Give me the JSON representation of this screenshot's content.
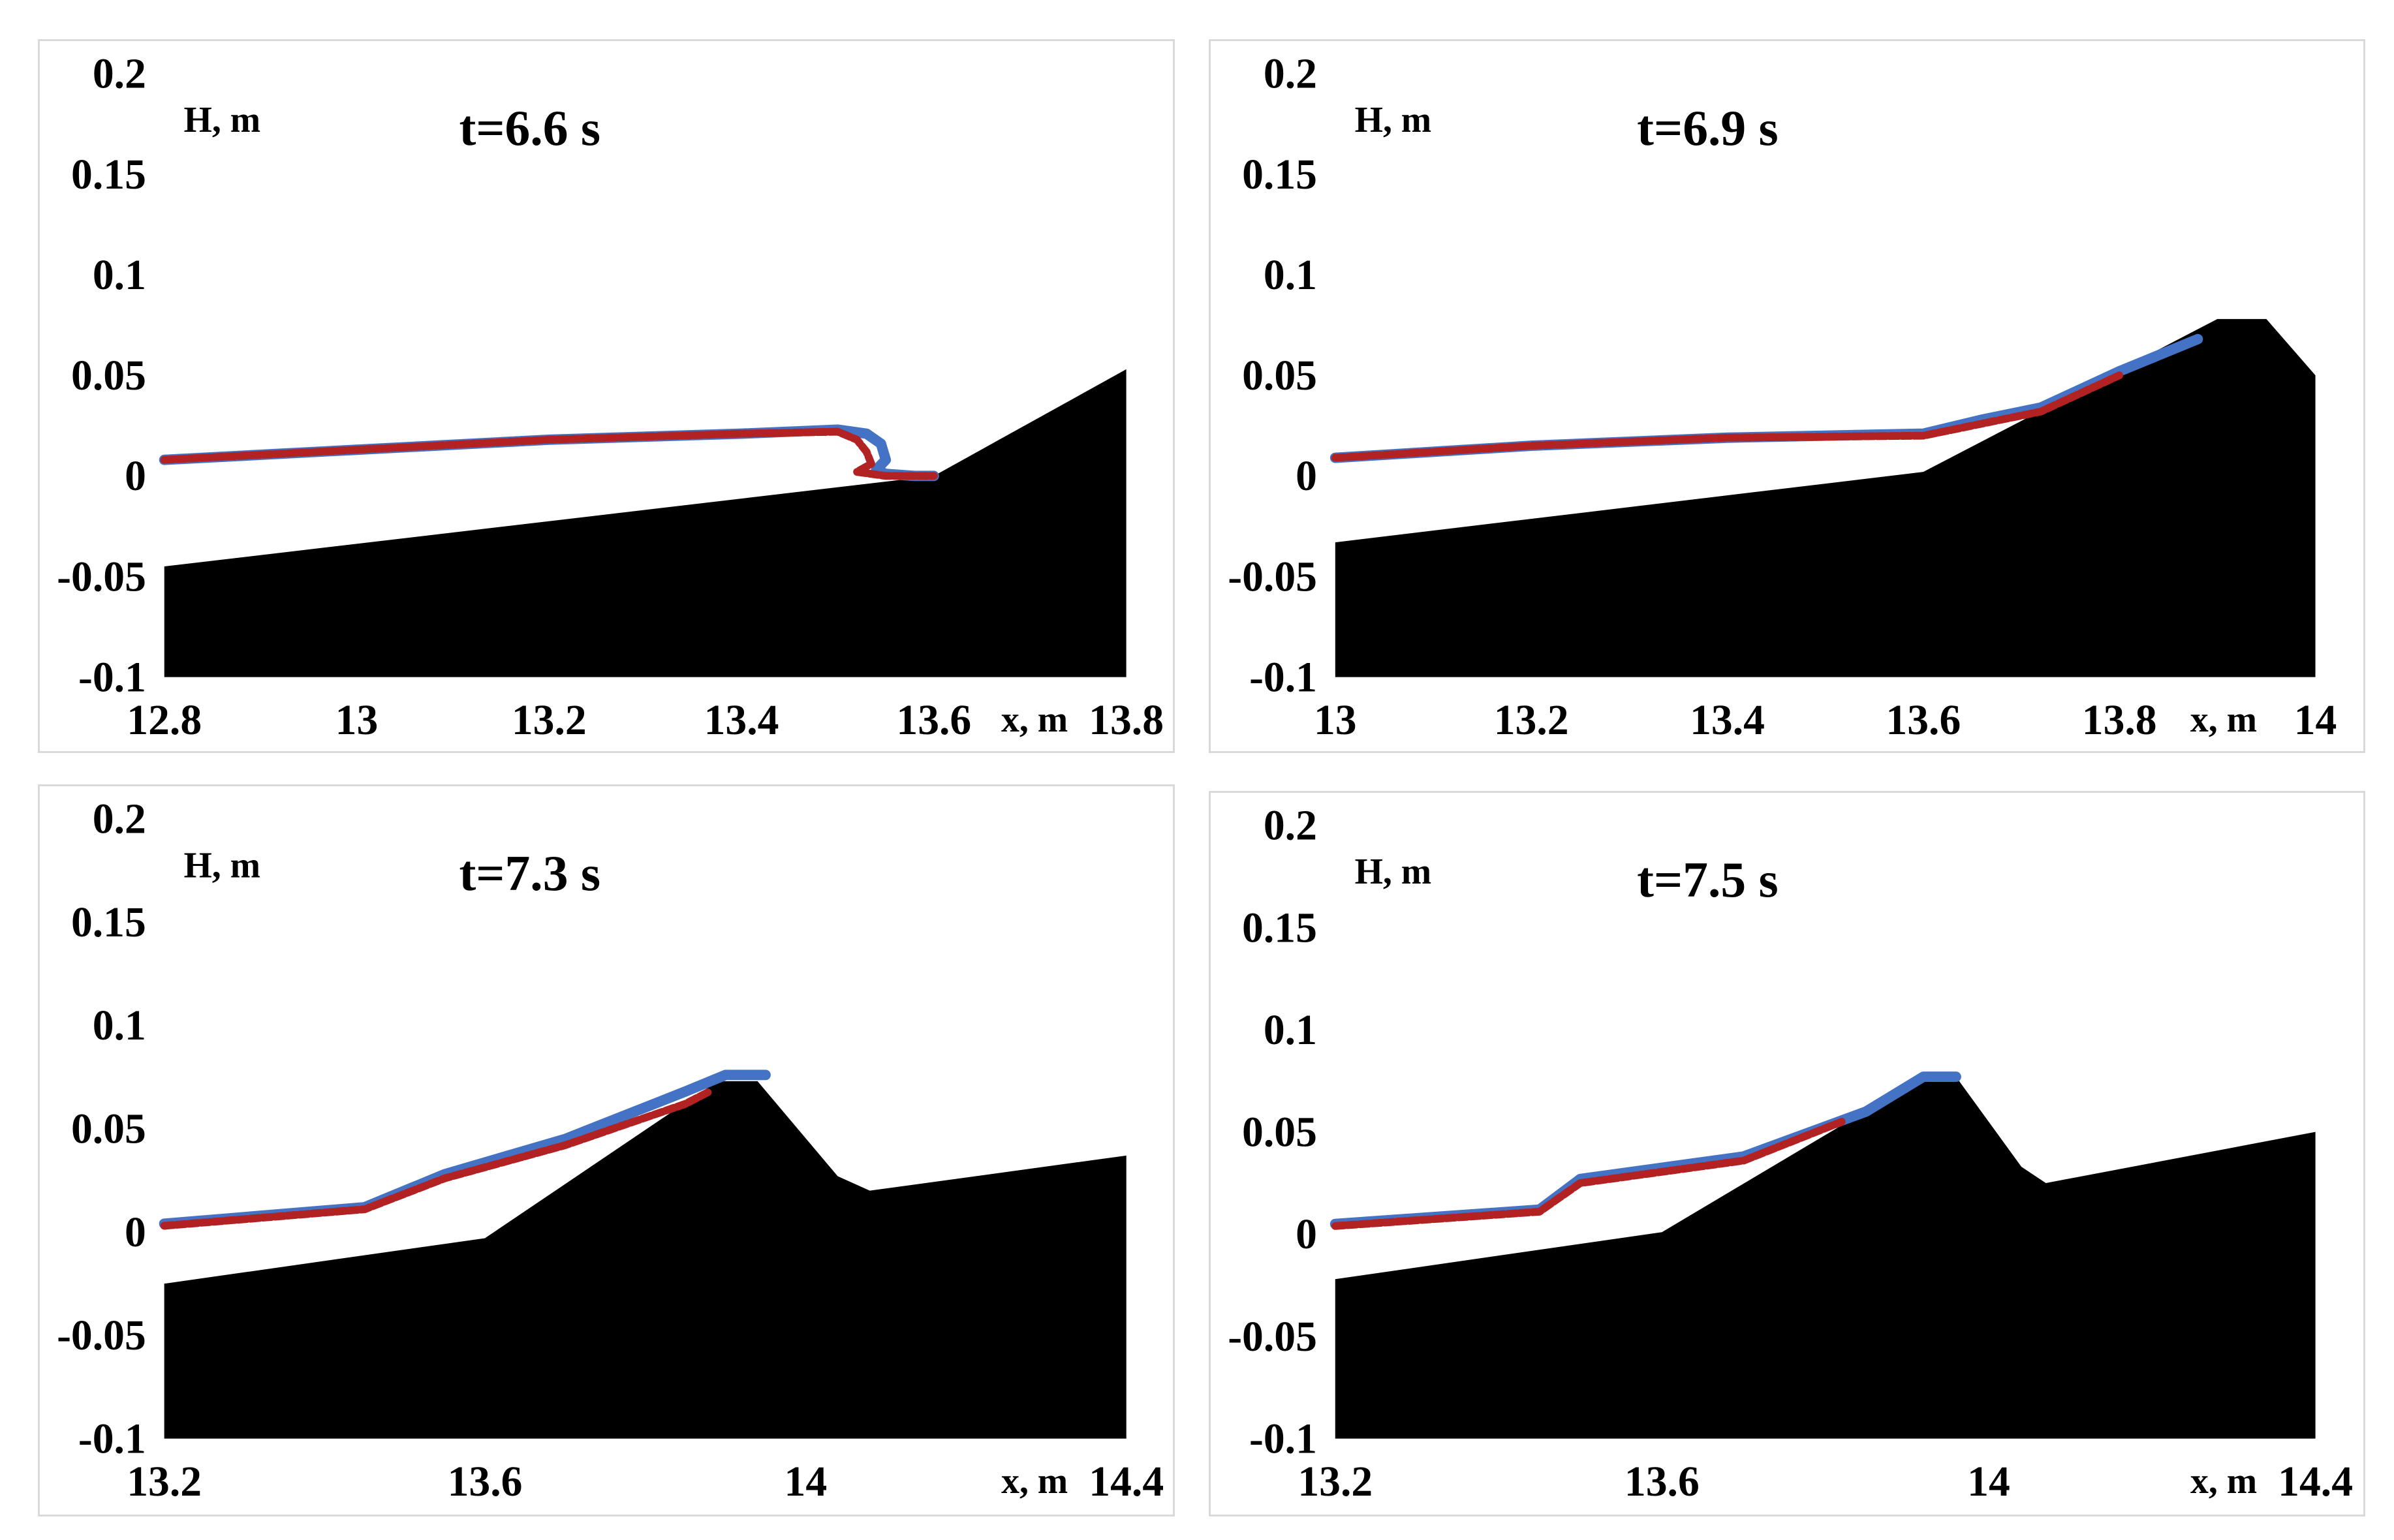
{
  "colors": {
    "bottom": "#000000",
    "series_a": "#4472C4",
    "series_b": "#B22222"
  },
  "chart_data": [
    {
      "type": "area",
      "title": "t=6.6 s",
      "xlabel": "x, m",
      "ylabel": "H, m",
      "xlim": [
        12.8,
        13.8
      ],
      "ylim": [
        -0.1,
        0.2
      ],
      "xticks": [
        "12.8",
        "13",
        "13.2",
        "13.4",
        "13.6",
        "13.8"
      ],
      "yticks": [
        "-0.1",
        "-0.05",
        "0",
        "0.05",
        "0.1",
        "0.15",
        "0.2"
      ],
      "bottom": {
        "x": [
          12.8,
          13.6,
          13.8
        ],
        "y": [
          -0.045,
          0.0,
          0.053
        ]
      },
      "series": [
        {
          "x": [
            12.8,
            13.0,
            13.2,
            13.4,
            13.5,
            13.53,
            13.545,
            13.55,
            13.54,
            13.55,
            13.58,
            13.6
          ],
          "y": [
            0.008,
            0.013,
            0.018,
            0.021,
            0.023,
            0.021,
            0.016,
            0.008,
            0.003,
            0.001,
            0.0,
            0.0
          ]
        },
        {
          "x": [
            12.8,
            13.0,
            13.2,
            13.4,
            13.5,
            13.52,
            13.53,
            13.535,
            13.52,
            13.55,
            13.58,
            13.6
          ],
          "y": [
            0.008,
            0.013,
            0.018,
            0.021,
            0.022,
            0.018,
            0.012,
            0.006,
            0.002,
            0.0,
            0.0,
            0.0
          ]
        }
      ]
    },
    {
      "type": "area",
      "title": "t=6.9 s",
      "xlabel": "x, m",
      "ylabel": "H, m",
      "xlim": [
        13.0,
        14.0
      ],
      "ylim": [
        -0.1,
        0.2
      ],
      "xticks": [
        "13",
        "13.2",
        "13.4",
        "13.6",
        "13.8",
        "14"
      ],
      "yticks": [
        "-0.1",
        "-0.05",
        "0",
        "0.05",
        "0.1",
        "0.15",
        "0.2"
      ],
      "bottom": {
        "x": [
          13.0,
          13.6,
          13.9,
          13.95,
          14.0
        ],
        "y": [
          -0.033,
          0.002,
          0.078,
          0.078,
          0.05
        ]
      },
      "series": [
        {
          "x": [
            13.0,
            13.2,
            13.4,
            13.6,
            13.66,
            13.72,
            13.8,
            13.88
          ],
          "y": [
            0.009,
            0.015,
            0.019,
            0.021,
            0.028,
            0.034,
            0.052,
            0.068
          ]
        },
        {
          "x": [
            13.0,
            13.2,
            13.4,
            13.6,
            13.66,
            13.72,
            13.8
          ],
          "y": [
            0.009,
            0.015,
            0.019,
            0.02,
            0.026,
            0.032,
            0.05
          ]
        }
      ]
    },
    {
      "type": "area",
      "title": "t=7.3 s",
      "xlabel": "x, m",
      "ylabel": "H, m",
      "xlim": [
        13.2,
        14.4
      ],
      "ylim": [
        -0.1,
        0.2
      ],
      "xticks": [
        "13.2",
        "13.6",
        "14",
        "14.4"
      ],
      "yticks": [
        "-0.1",
        "-0.05",
        "0",
        "0.05",
        "0.1",
        "0.15",
        "0.2"
      ],
      "bottom": {
        "x": [
          13.2,
          13.6,
          13.89,
          13.94,
          14.04,
          14.08,
          14.4
        ],
        "y": [
          -0.025,
          -0.003,
          0.073,
          0.073,
          0.027,
          0.02,
          0.037
        ]
      },
      "series": [
        {
          "x": [
            13.2,
            13.45,
            13.55,
            13.7,
            13.85,
            13.9,
            13.95
          ],
          "y": [
            0.004,
            0.012,
            0.028,
            0.045,
            0.068,
            0.076,
            0.076
          ]
        },
        {
          "x": [
            13.2,
            13.45,
            13.55,
            13.7,
            13.85,
            13.88
          ],
          "y": [
            0.003,
            0.011,
            0.026,
            0.042,
            0.062,
            0.068
          ]
        }
      ]
    },
    {
      "type": "area",
      "title": "t=7.5 s",
      "xlabel": "x, m",
      "ylabel": "H, m",
      "xlim": [
        13.2,
        14.4
      ],
      "ylim": [
        -0.1,
        0.2
      ],
      "xticks": [
        "13.2",
        "13.6",
        "14",
        "14.4"
      ],
      "yticks": [
        "-0.1",
        "-0.05",
        "0",
        "0.05",
        "0.1",
        "0.15",
        "0.2"
      ],
      "bottom": {
        "x": [
          13.2,
          13.6,
          13.92,
          13.96,
          14.04,
          14.07,
          14.4
        ],
        "y": [
          -0.022,
          0.001,
          0.077,
          0.077,
          0.033,
          0.025,
          0.05
        ]
      },
      "series": [
        {
          "x": [
            13.2,
            13.45,
            13.5,
            13.7,
            13.85,
            13.92,
            13.96
          ],
          "y": [
            0.005,
            0.012,
            0.027,
            0.038,
            0.06,
            0.077,
            0.077
          ]
        },
        {
          "x": [
            13.2,
            13.45,
            13.5,
            13.7,
            13.82
          ],
          "y": [
            0.004,
            0.011,
            0.025,
            0.036,
            0.055
          ]
        }
      ]
    }
  ]
}
